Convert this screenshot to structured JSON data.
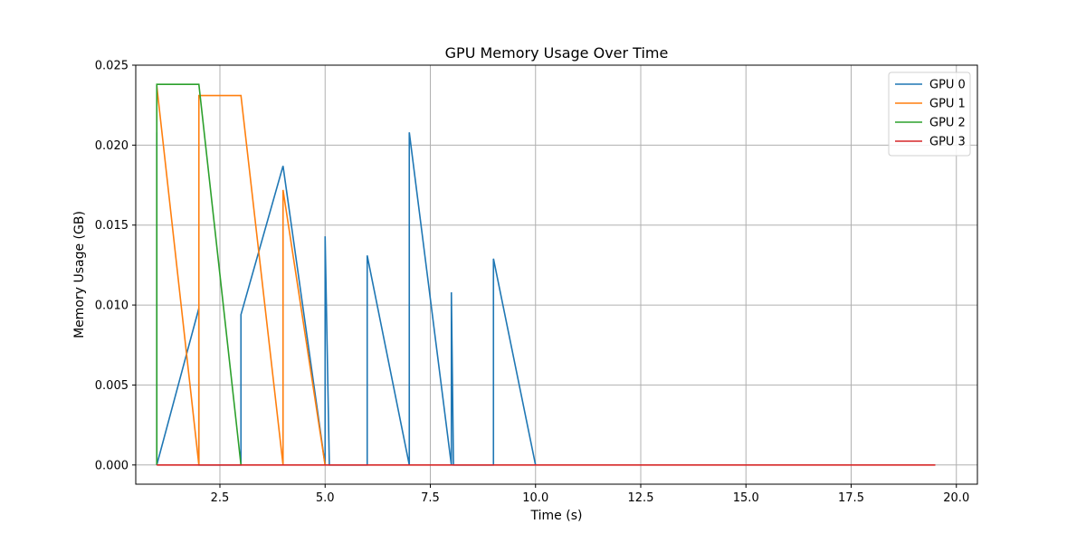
{
  "chart_data": {
    "type": "line",
    "title": "GPU Memory Usage Over Time",
    "xlabel": "Time (s)",
    "ylabel": "Memory Usage (GB)",
    "xlim": [
      0.5,
      20.5
    ],
    "ylim": [
      -0.0012,
      0.025
    ],
    "xticks": [
      2.5,
      5.0,
      7.5,
      10.0,
      12.5,
      15.0,
      17.5,
      20.0
    ],
    "xtick_labels": [
      "2.5",
      "5.0",
      "7.5",
      "10.0",
      "12.5",
      "15.0",
      "17.5",
      "20.0"
    ],
    "yticks": [
      0.0,
      0.005,
      0.01,
      0.015,
      0.02,
      0.025
    ],
    "ytick_labels": [
      "0.000",
      "0.005",
      "0.010",
      "0.015",
      "0.020",
      "0.025"
    ],
    "grid": true,
    "legend_position": "top-right",
    "series": [
      {
        "name": "GPU 0",
        "color": "#1f77b4",
        "points": [
          [
            1.0,
            0.0208
          ],
          [
            1.0,
            0.0
          ],
          [
            2.0,
            0.0098
          ],
          [
            2.0,
            0.0
          ],
          [
            3.0,
            0.0
          ],
          [
            3.0,
            0.0094
          ],
          [
            4.0,
            0.0187
          ],
          [
            5.0,
            0.0
          ],
          [
            5.0,
            0.0143
          ],
          [
            5.1,
            0.0
          ],
          [
            6.0,
            0.0
          ],
          [
            6.0,
            0.0131
          ],
          [
            7.0,
            0.0
          ],
          [
            7.0,
            0.0208
          ],
          [
            8.0,
            0.0
          ],
          [
            8.0,
            0.0108
          ],
          [
            8.05,
            0.0
          ],
          [
            9.0,
            0.0
          ],
          [
            9.0,
            0.0129
          ],
          [
            10.0,
            0.0
          ]
        ]
      },
      {
        "name": "GPU 1",
        "color": "#ff7f0e",
        "points": [
          [
            1.0,
            0.0237
          ],
          [
            2.0,
            0.0
          ],
          [
            2.0,
            0.0231
          ],
          [
            3.0,
            0.0231
          ],
          [
            4.0,
            0.0
          ],
          [
            4.0,
            0.0172
          ],
          [
            5.0,
            0.0
          ]
        ]
      },
      {
        "name": "GPU 2",
        "color": "#2ca02c",
        "points": [
          [
            1.0,
            0.0
          ],
          [
            1.0,
            0.0238
          ],
          [
            2.0,
            0.0238
          ],
          [
            3.0,
            0.0
          ]
        ]
      },
      {
        "name": "GPU 3",
        "color": "#d62728",
        "points": [
          [
            1.0,
            0.0
          ],
          [
            19.5,
            0.0
          ]
        ]
      }
    ]
  }
}
